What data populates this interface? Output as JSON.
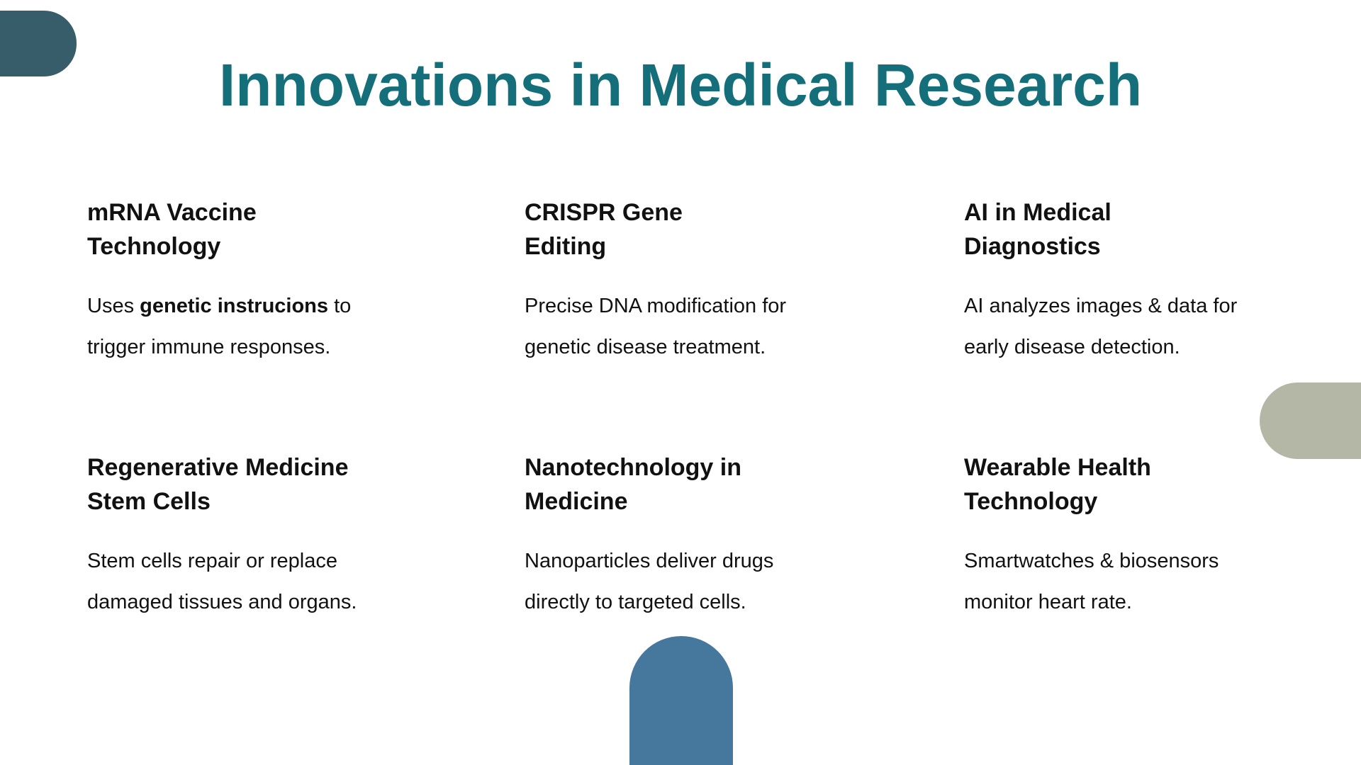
{
  "title": {
    "text": "Innovations in Medical Research",
    "color": "#156f7a"
  },
  "colors": {
    "top_left_shape": "#365d69",
    "right_shape": "#b4b7a5",
    "bottom_shape": "#46789d",
    "text": "#111111",
    "background": "#ffffff"
  },
  "cards": [
    {
      "title_line1": "mRNA Vaccine",
      "title_line2": "Technology",
      "body_line1_prefix": "Uses ",
      "body_line1_bold": "genetic instrucions",
      "body_line1_suffix": " to",
      "body_line2": "trigger immune responses."
    },
    {
      "title_line1": "CRISPR Gene",
      "title_line2": "Editing",
      "body_line1": "Precise DNA modification for",
      "body_line2": "genetic disease treatment."
    },
    {
      "title_line1": "AI in Medical",
      "title_line2": "Diagnostics",
      "body_line1": "AI analyzes images & data for",
      "body_line2": "early disease detection."
    },
    {
      "title_line1": "Regenerative Medicine",
      "title_line2": "Stem Cells",
      "body_line1": "Stem cells repair or replace",
      "body_line2": "damaged tissues and organs."
    },
    {
      "title_line1": "Nanotechnology in",
      "title_line2": "Medicine",
      "body_line1": "Nanoparticles deliver drugs",
      "body_line2": "directly to targeted cells."
    },
    {
      "title_line1": "Wearable Health",
      "title_line2": "Technology",
      "body_line1": "Smartwatches & biosensors",
      "body_line2": "monitor heart rate."
    }
  ]
}
